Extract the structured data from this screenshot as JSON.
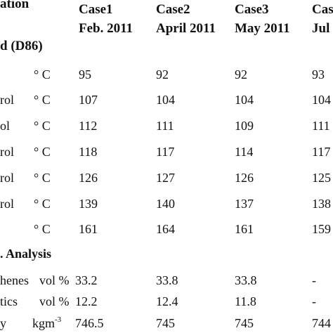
{
  "header": {
    "col0_line1": "ation",
    "col0_line2": "d (D86)",
    "columns": [
      {
        "line1": "Case1",
        "line2": "Feb. 2011"
      },
      {
        "line1": "Case2",
        "line2": "April 2011"
      },
      {
        "line1": "Case3",
        "line2": "May 2011"
      },
      {
        "line1": "Cas",
        "line2": "Jul"
      }
    ]
  },
  "distillation_rows": [
    {
      "label": "",
      "unit": "° C",
      "values": [
        "95",
        "92",
        "92",
        "93"
      ]
    },
    {
      "label": "rol",
      "unit": "° C",
      "values": [
        "107",
        "104",
        "104",
        "104"
      ]
    },
    {
      "label": "ol",
      "unit": "° C",
      "values": [
        "112",
        "111",
        "109",
        "111"
      ]
    },
    {
      "label": "rol",
      "unit": "° C",
      "values": [
        "118",
        "117",
        "114",
        "117"
      ]
    },
    {
      "label": "rol",
      "unit": "° C",
      "values": [
        "126",
        "127",
        "126",
        "125"
      ]
    },
    {
      "label": "rol",
      "unit": "° C",
      "values": [
        "139",
        "140",
        "137",
        "138"
      ]
    },
    {
      "label": "",
      "unit": "° C",
      "values": [
        "161",
        "164",
        "161",
        "159"
      ]
    }
  ],
  "analysis": {
    "title": ". Analysis",
    "rows": [
      {
        "label": "henes",
        "unit": "vol %",
        "values": [
          "33.2",
          "33.8",
          "33.8",
          "-"
        ]
      },
      {
        "label": "tics",
        "unit": "vol %",
        "values": [
          "12.2",
          "12.4",
          "11.8",
          "-"
        ]
      }
    ]
  },
  "density_row": {
    "label": "y",
    "unit_base": "kgm",
    "unit_sup": "-3",
    "values": [
      "746.5",
      "745",
      "745",
      "744"
    ]
  }
}
